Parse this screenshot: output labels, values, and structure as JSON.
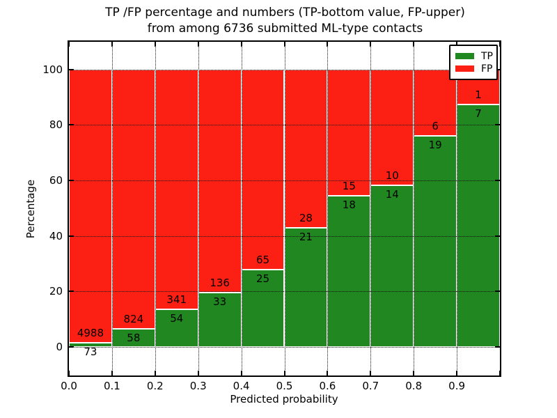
{
  "title": {
    "line1": "TP /FP percentage and numbers (TP-bottom value, FP-upper)",
    "line2": "from among 6736 submitted ML-type contacts"
  },
  "chart_data": {
    "type": "bar",
    "stacked": true,
    "normalized": "each bin stacked to 100%",
    "total_contacts": 6736,
    "bin_edges": [
      0.0,
      0.1,
      0.2,
      0.3,
      0.4,
      0.5,
      0.6,
      0.7,
      0.8,
      0.9,
      1.0
    ],
    "series": [
      {
        "name": "TP",
        "color": "#218721",
        "counts": [
          73,
          58,
          54,
          33,
          25,
          21,
          18,
          14,
          19,
          7
        ]
      },
      {
        "name": "FP",
        "color": "#fb1f14",
        "counts": [
          4988,
          824,
          341,
          136,
          65,
          28,
          15,
          10,
          6,
          1
        ]
      }
    ],
    "tp_percent_per_bin": [
      1.44,
      6.58,
      13.67,
      19.53,
      27.78,
      42.86,
      54.55,
      58.33,
      76.0,
      87.5
    ],
    "xlabel": "Predicted probability",
    "ylabel": "Percentage",
    "xticks": [
      "0.0",
      "0.1",
      "0.2",
      "0.3",
      "0.4",
      "0.5",
      "0.6",
      "0.7",
      "0.8",
      "0.9"
    ],
    "yticks": [
      0,
      20,
      40,
      60,
      80,
      100
    ],
    "xlim": [
      0,
      1
    ],
    "ylim": [
      -10.3,
      110
    ],
    "grid": {
      "style": "dotted",
      "color": "#000000",
      "on": true
    },
    "legend": {
      "position": "upper right",
      "entries": [
        {
          "label": "TP",
          "color": "#218721"
        },
        {
          "label": "FP",
          "color": "#fb1f14"
        }
      ]
    }
  }
}
